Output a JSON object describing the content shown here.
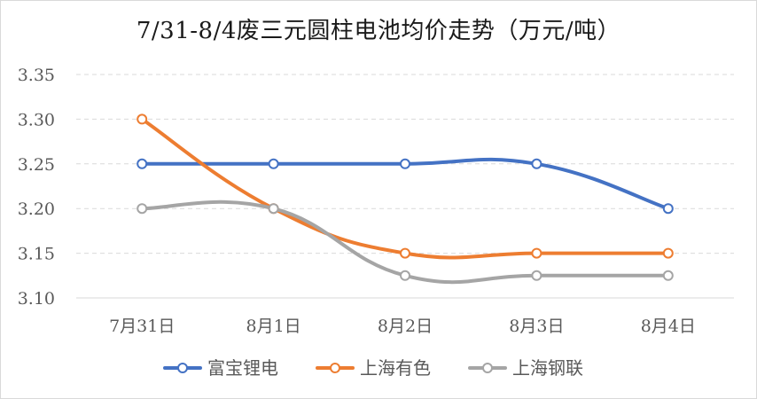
{
  "chart_data": {
    "type": "line",
    "title": "7/31-8/4废三元圆柱电池均价走势（万元/吨）",
    "categories": [
      "7月31日",
      "8月1日",
      "8月2日",
      "8月3日",
      "8月4日"
    ],
    "yticks": [
      "3.10",
      "3.15",
      "3.20",
      "3.25",
      "3.30",
      "3.35"
    ],
    "ylim": [
      3.1,
      3.35
    ],
    "grid": true,
    "legend_position": "bottom",
    "series": [
      {
        "name": "富宝锂电",
        "color": "#4472c4",
        "values": [
          3.25,
          3.25,
          3.25,
          3.25,
          3.2
        ]
      },
      {
        "name": "上海有色",
        "color": "#ed7d31",
        "values": [
          3.3,
          3.2,
          3.15,
          3.15,
          3.15
        ]
      },
      {
        "name": "上海钢联",
        "color": "#a5a5a5",
        "values": [
          3.2,
          3.2,
          3.125,
          3.125,
          3.125
        ]
      }
    ]
  }
}
